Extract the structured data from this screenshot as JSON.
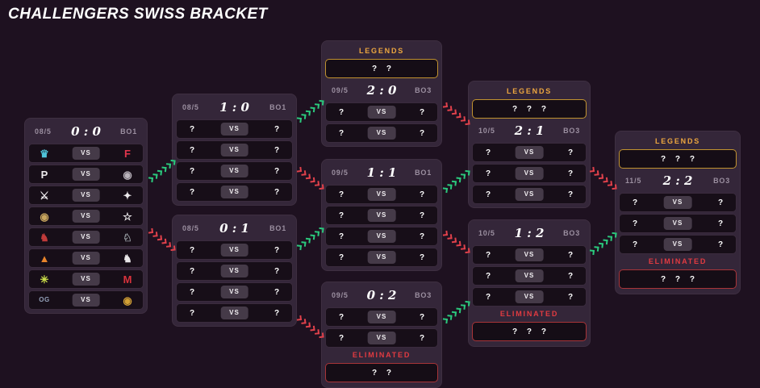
{
  "title": "CHALLENGERS SWISS BRACKET",
  "labels": {
    "vs": "VS",
    "legends": "LEGENDS",
    "eliminated": "ELIMINATED"
  },
  "colors": {
    "advance": "#2bc97d",
    "eliminate": "#e0414b",
    "gold": "#eda73f",
    "red": "#e23b41"
  },
  "brackets": [
    {
      "id": "0-0",
      "date": "08/5",
      "score": "0 : 0",
      "format": "BO1",
      "matches": [
        {
          "left": {
            "type": "logo",
            "glyph": "♛",
            "color": "#4fc3d9",
            "icon": "teal-crown-logo-icon"
          },
          "right": {
            "type": "logo",
            "glyph": "F",
            "color": "#e0354c",
            "icon": "red-letter-f-logo-icon"
          }
        },
        {
          "left": {
            "type": "logo",
            "glyph": "P",
            "color": "#ece9ec",
            "icon": "letter-p-logo-icon"
          },
          "right": {
            "type": "logo",
            "glyph": "◉",
            "color": "#b9b3bb",
            "icon": "circle-emblem-logo-icon"
          }
        },
        {
          "left": {
            "type": "logo",
            "glyph": "⚔",
            "color": "#ece9ec",
            "icon": "white-crest-logo-icon"
          },
          "right": {
            "type": "logo",
            "glyph": "✦",
            "color": "#ece9ec",
            "icon": "flame-logo-icon"
          }
        },
        {
          "left": {
            "type": "logo",
            "glyph": "◉",
            "color": "#c8a55e",
            "icon": "round-badge-logo-icon"
          },
          "right": {
            "type": "logo",
            "glyph": "☆",
            "color": "#f2f0f2",
            "icon": "star-outline-logo-icon"
          }
        },
        {
          "left": {
            "type": "logo",
            "glyph": "♞",
            "color": "#c03a3a",
            "icon": "red-wolf-logo-icon"
          },
          "right": {
            "type": "logo",
            "glyph": "♘",
            "color": "#9aa0a6",
            "icon": "gray-eagle-logo-icon"
          }
        },
        {
          "left": {
            "type": "logo",
            "glyph": "▲",
            "color": "#e8842a",
            "icon": "orange-mark-logo-icon"
          },
          "right": {
            "type": "logo",
            "glyph": "♞",
            "color": "#e8e6e8",
            "icon": "horse-logo-icon"
          }
        },
        {
          "left": {
            "type": "logo",
            "glyph": "✳",
            "color": "#cde04a",
            "icon": "ninja-star-logo-icon"
          },
          "right": {
            "type": "logo",
            "glyph": "M",
            "color": "#d8323c",
            "icon": "red-letter-m-logo-icon"
          }
        },
        {
          "left": {
            "type": "logo",
            "glyph": "OG",
            "color": "#93a0b8",
            "icon": "og-letters-logo-icon"
          },
          "right": {
            "type": "logo",
            "glyph": "◉",
            "color": "#d2a035",
            "icon": "gold-medallion-logo-icon"
          }
        }
      ]
    },
    {
      "id": "1-0",
      "date": "08/5",
      "score": "1 : 0",
      "format": "BO1",
      "matches": [
        {
          "left": {
            "type": "tbd",
            "text": "?"
          },
          "right": {
            "type": "tbd",
            "text": "?"
          }
        },
        {
          "left": {
            "type": "tbd",
            "text": "?"
          },
          "right": {
            "type": "tbd",
            "text": "?"
          }
        },
        {
          "left": {
            "type": "tbd",
            "text": "?"
          },
          "right": {
            "type": "tbd",
            "text": "?"
          }
        },
        {
          "left": {
            "type": "tbd",
            "text": "?"
          },
          "right": {
            "type": "tbd",
            "text": "?"
          }
        }
      ]
    },
    {
      "id": "0-1",
      "date": "08/5",
      "score": "0 : 1",
      "format": "BO1",
      "matches": [
        {
          "left": {
            "type": "tbd",
            "text": "?"
          },
          "right": {
            "type": "tbd",
            "text": "?"
          }
        },
        {
          "left": {
            "type": "tbd",
            "text": "?"
          },
          "right": {
            "type": "tbd",
            "text": "?"
          }
        },
        {
          "left": {
            "type": "tbd",
            "text": "?"
          },
          "right": {
            "type": "tbd",
            "text": "?"
          }
        },
        {
          "left": {
            "type": "tbd",
            "text": "?"
          },
          "right": {
            "type": "tbd",
            "text": "?"
          }
        }
      ]
    },
    {
      "id": "2-0",
      "date": "09/5",
      "score": "2 : 0",
      "format": "BO3",
      "legends_box": "? ?",
      "matches": [
        {
          "left": {
            "type": "tbd",
            "text": "?"
          },
          "right": {
            "type": "tbd",
            "text": "?"
          }
        },
        {
          "left": {
            "type": "tbd",
            "text": "?"
          },
          "right": {
            "type": "tbd",
            "text": "?"
          }
        }
      ]
    },
    {
      "id": "1-1",
      "date": "09/5",
      "score": "1 : 1",
      "format": "BO1",
      "matches": [
        {
          "left": {
            "type": "tbd",
            "text": "?"
          },
          "right": {
            "type": "tbd",
            "text": "?"
          }
        },
        {
          "left": {
            "type": "tbd",
            "text": "?"
          },
          "right": {
            "type": "tbd",
            "text": "?"
          }
        },
        {
          "left": {
            "type": "tbd",
            "text": "?"
          },
          "right": {
            "type": "tbd",
            "text": "?"
          }
        },
        {
          "left": {
            "type": "tbd",
            "text": "?"
          },
          "right": {
            "type": "tbd",
            "text": "?"
          }
        }
      ]
    },
    {
      "id": "0-2",
      "date": "09/5",
      "score": "0 : 2",
      "format": "BO3",
      "matches": [
        {
          "left": {
            "type": "tbd",
            "text": "?"
          },
          "right": {
            "type": "tbd",
            "text": "?"
          }
        },
        {
          "left": {
            "type": "tbd",
            "text": "?"
          },
          "right": {
            "type": "tbd",
            "text": "?"
          }
        }
      ],
      "eliminated_box": "? ?"
    },
    {
      "id": "2-1",
      "date": "10/5",
      "score": "2 : 1",
      "format": "BO3",
      "legends_box": "? ? ?",
      "matches": [
        {
          "left": {
            "type": "tbd",
            "text": "?"
          },
          "right": {
            "type": "tbd",
            "text": "?"
          }
        },
        {
          "left": {
            "type": "tbd",
            "text": "?"
          },
          "right": {
            "type": "tbd",
            "text": "?"
          }
        },
        {
          "left": {
            "type": "tbd",
            "text": "?"
          },
          "right": {
            "type": "tbd",
            "text": "?"
          }
        }
      ]
    },
    {
      "id": "1-2",
      "date": "10/5",
      "score": "1 : 2",
      "format": "BO3",
      "matches": [
        {
          "left": {
            "type": "tbd",
            "text": "?"
          },
          "right": {
            "type": "tbd",
            "text": "?"
          }
        },
        {
          "left": {
            "type": "tbd",
            "text": "?"
          },
          "right": {
            "type": "tbd",
            "text": "?"
          }
        },
        {
          "left": {
            "type": "tbd",
            "text": "?"
          },
          "right": {
            "type": "tbd",
            "text": "?"
          }
        }
      ],
      "eliminated_box": "? ? ?"
    },
    {
      "id": "2-2",
      "date": "11/5",
      "score": "2 : 2",
      "format": "BO3",
      "legends_box": "? ? ?",
      "matches": [
        {
          "left": {
            "type": "tbd",
            "text": "?"
          },
          "right": {
            "type": "tbd",
            "text": "?"
          }
        },
        {
          "left": {
            "type": "tbd",
            "text": "?"
          },
          "right": {
            "type": "tbd",
            "text": "?"
          }
        },
        {
          "left": {
            "type": "tbd",
            "text": "?"
          },
          "right": {
            "type": "tbd",
            "text": "?"
          }
        }
      ],
      "eliminated_box": "? ? ?"
    }
  ],
  "arrows": [
    {
      "from": "0:0",
      "to": "1:0",
      "type": "advance"
    },
    {
      "from": "0:0",
      "to": "0:1",
      "type": "eliminate"
    },
    {
      "from": "1:0",
      "to": "2:0",
      "type": "advance"
    },
    {
      "from": "1:0",
      "to": "1:1",
      "type": "eliminate"
    },
    {
      "from": "0:1",
      "to": "1:1",
      "type": "advance"
    },
    {
      "from": "0:1",
      "to": "0:2",
      "type": "eliminate"
    },
    {
      "from": "2:0",
      "to": "2:1",
      "type": "eliminate"
    },
    {
      "from": "1:1",
      "to": "2:1",
      "type": "advance"
    },
    {
      "from": "1:1",
      "to": "1:2",
      "type": "eliminate"
    },
    {
      "from": "0:2",
      "to": "1:2",
      "type": "advance"
    },
    {
      "from": "2:1",
      "to": "2:2",
      "type": "eliminate"
    },
    {
      "from": "1:2",
      "to": "2:2",
      "type": "advance"
    }
  ]
}
